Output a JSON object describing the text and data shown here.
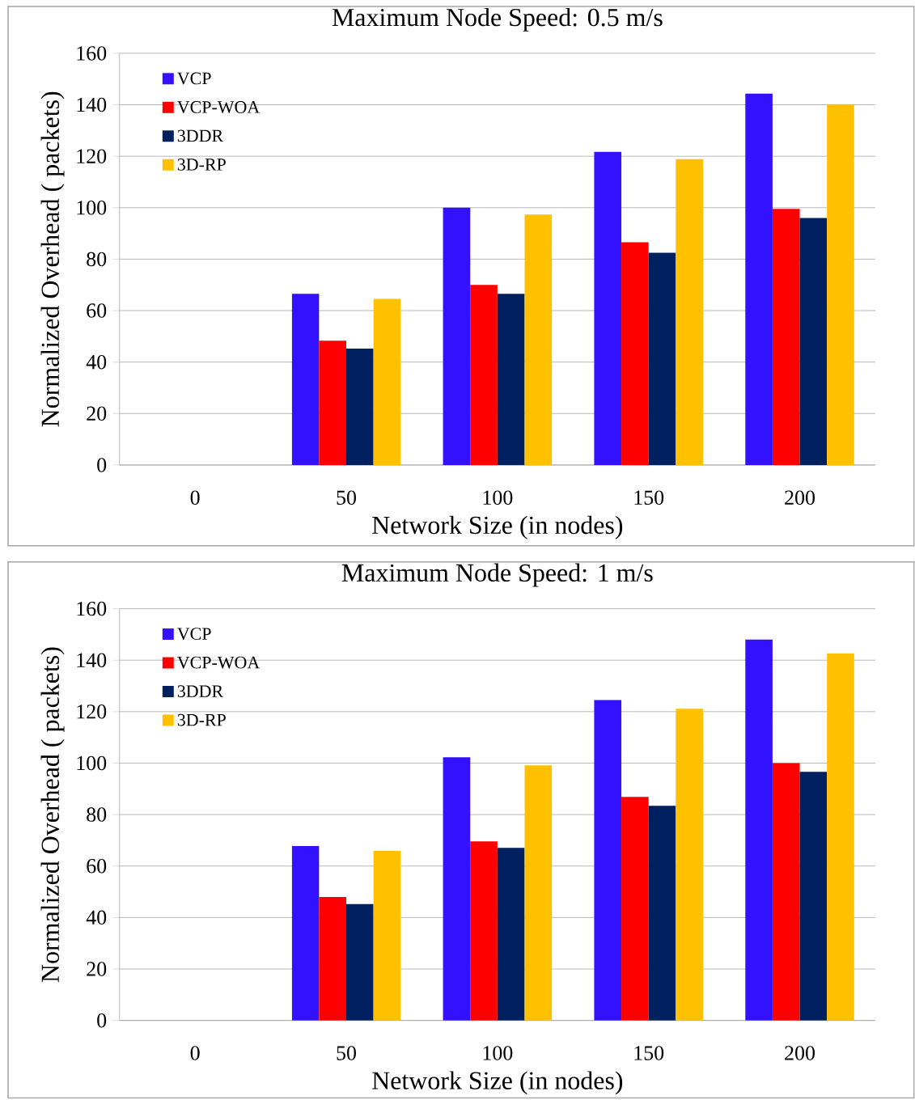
{
  "chart_data": [
    {
      "type": "bar",
      "title": "Maximum Node Speed: 0.5 m/s",
      "xlabel": "Network Size (in nodes)",
      "ylabel": "Normalized Overhead ( packets)",
      "categories": [
        "0",
        "50",
        "100",
        "150",
        "200"
      ],
      "series": [
        {
          "name": "VCP",
          "color": "#3311ff",
          "values": [
            null,
            66.5,
            100,
            121.7,
            144.3
          ]
        },
        {
          "name": "VCP-WOA",
          "color": "#ff0000",
          "values": [
            null,
            48.3,
            70,
            86.6,
            99.5
          ]
        },
        {
          "name": "3DDR",
          "color": "#002060",
          "values": [
            null,
            45.2,
            66.5,
            82.5,
            96
          ]
        },
        {
          "name": "3D-RP",
          "color": "#ffc000",
          "values": [
            null,
            64.6,
            97.3,
            118.9,
            140.2
          ]
        }
      ],
      "ylim": [
        0,
        160
      ],
      "yticks": [
        0,
        20,
        40,
        60,
        80,
        100,
        120,
        140,
        160
      ],
      "grid": "y",
      "legend": "top left"
    },
    {
      "type": "bar",
      "title": "Maximum Node Speed: 1 m/s",
      "xlabel": "Network Size (in nodes)",
      "ylabel": "Normalized Overhead ( packets)",
      "categories": [
        "0",
        "50",
        "100",
        "150",
        "200"
      ],
      "series": [
        {
          "name": "VCP",
          "color": "#3311ff",
          "values": [
            null,
            67.8,
            102.3,
            124.5,
            148
          ]
        },
        {
          "name": "VCP-WOA",
          "color": "#ff0000",
          "values": [
            null,
            48,
            69.6,
            86.9,
            100
          ]
        },
        {
          "name": "3DDR",
          "color": "#002060",
          "values": [
            null,
            45.2,
            67.1,
            83.4,
            96.6
          ]
        },
        {
          "name": "3D-RP",
          "color": "#ffc000",
          "values": [
            null,
            65.9,
            99.1,
            121.1,
            142.7
          ]
        }
      ],
      "ylim": [
        0,
        160
      ],
      "yticks": [
        0,
        20,
        40,
        60,
        80,
        100,
        120,
        140,
        160
      ],
      "grid": "y",
      "legend": "top left"
    }
  ]
}
